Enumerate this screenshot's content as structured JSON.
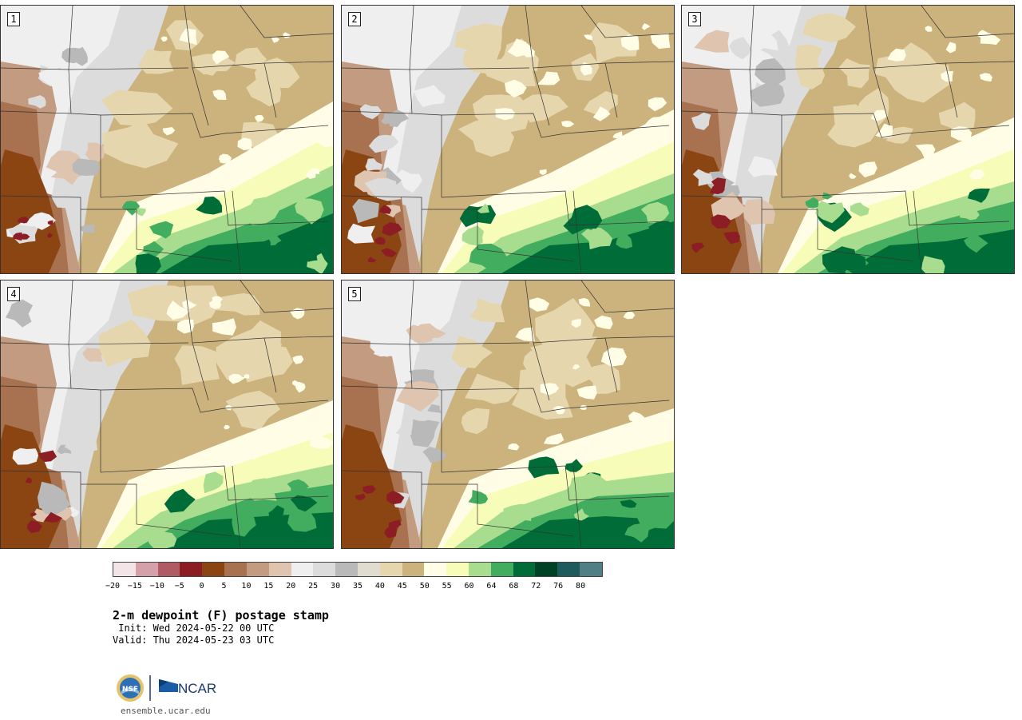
{
  "panels": [
    {
      "label": "1",
      "variant": 0
    },
    {
      "label": "2",
      "variant": 1
    },
    {
      "label": "3",
      "variant": 2
    },
    {
      "label": "4",
      "variant": 3
    },
    {
      "label": "5",
      "variant": 4
    }
  ],
  "colorbar": {
    "colors": [
      "#f3e4e8",
      "#d4a1a8",
      "#b05a63",
      "#8c1d24",
      "#8b4513",
      "#a87150",
      "#c39b80",
      "#dfc4b0",
      "#efefef",
      "#dcdcdc",
      "#b9b9b9",
      "#e0ddd0",
      "#e6d6ad",
      "#ccb27d",
      "#fffde6",
      "#f7fdb8",
      "#a8dd8f",
      "#43ad5f",
      "#006d38",
      "#004225",
      "#1f5b5e",
      "#517f86"
    ],
    "tick_labels": [
      "−20",
      "−15",
      "−10",
      "−5",
      "0",
      "5",
      "10",
      "15",
      "20",
      "25",
      "30",
      "35",
      "40",
      "45",
      "50",
      "55",
      "60",
      "64",
      "68",
      "72",
      "76",
      "80"
    ]
  },
  "title": "2-m dewpoint (F) postage stamp",
  "init_line": " Init: Wed 2024-05-22 00 UTC",
  "valid_line": "Valid: Thu 2024-05-23 03 UTC",
  "logo": {
    "nsf_text": "NSF",
    "ncar_text": "NCAR"
  },
  "site": "ensemble.ucar.edu"
}
